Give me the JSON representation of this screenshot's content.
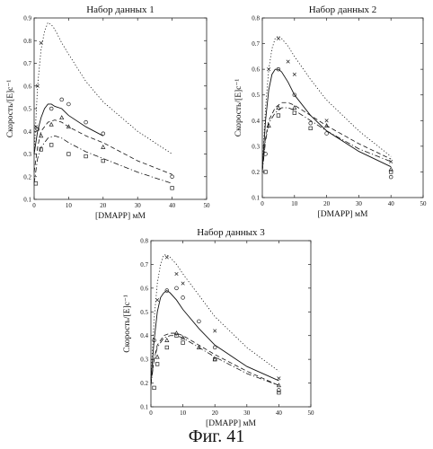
{
  "figure_caption": "Фиг. 41",
  "chart_data": [
    {
      "type": "line+scatter",
      "title": "Набор данных 1",
      "xlabel": "[DMAPP] мМ",
      "ylabel": "Скорость/[E]c⁻¹",
      "xlim": [
        0,
        50
      ],
      "ylim": [
        0.1,
        0.9
      ],
      "xticks": [
        "0",
        "10",
        "20",
        "30",
        "40",
        "50"
      ],
      "yticks": [
        "0.1",
        "0.2",
        "0.3",
        "0.4",
        "0.5",
        "0.6",
        "0.7",
        "0.8",
        "0.9"
      ],
      "grid": false,
      "series": [
        {
          "style": "dotted",
          "marker": "x",
          "x": [
            0,
            1,
            2,
            3,
            4,
            5,
            6,
            8,
            10,
            15,
            20,
            30,
            40
          ],
          "y": [
            0.3,
            0.6,
            0.76,
            0.84,
            0.88,
            0.87,
            0.85,
            0.79,
            0.74,
            0.62,
            0.53,
            0.4,
            0.3
          ],
          "points": [
            [
              0.5,
              0.42
            ],
            [
              1,
              0.6
            ],
            [
              2,
              0.79
            ]
          ]
        },
        {
          "style": "solid",
          "marker": "o",
          "x": [
            0,
            1,
            2,
            3,
            4,
            5,
            6,
            8,
            10,
            15,
            20
          ],
          "y": [
            0.3,
            0.4,
            0.46,
            0.5,
            0.52,
            0.52,
            0.51,
            0.5,
            0.47,
            0.42,
            0.38
          ],
          "points": [
            [
              1,
              0.41
            ],
            [
              5,
              0.5
            ],
            [
              8,
              0.54
            ],
            [
              10,
              0.52
            ],
            [
              15,
              0.44
            ],
            [
              20,
              0.39
            ],
            [
              40,
              0.2
            ]
          ]
        },
        {
          "style": "dashed",
          "marker": "triangle",
          "x": [
            0,
            1,
            2,
            4,
            6,
            8,
            10,
            15,
            20,
            30,
            40
          ],
          "y": [
            0.22,
            0.33,
            0.4,
            0.44,
            0.45,
            0.44,
            0.42,
            0.38,
            0.35,
            0.27,
            0.21
          ],
          "points": [
            [
              2,
              0.38
            ],
            [
              5,
              0.43
            ],
            [
              8,
              0.46
            ],
            [
              10,
              0.42
            ],
            [
              20,
              0.33
            ]
          ]
        },
        {
          "style": "dashdot",
          "marker": "square",
          "x": [
            0,
            1,
            2,
            4,
            6,
            8,
            10,
            15,
            20,
            30,
            40
          ],
          "y": [
            0.17,
            0.28,
            0.33,
            0.37,
            0.38,
            0.37,
            0.35,
            0.31,
            0.28,
            0.22,
            0.17
          ],
          "points": [
            [
              0.5,
              0.17
            ],
            [
              2,
              0.32
            ],
            [
              5,
              0.34
            ],
            [
              10,
              0.3
            ],
            [
              15,
              0.29
            ],
            [
              20,
              0.27
            ],
            [
              40,
              0.15
            ]
          ]
        }
      ]
    },
    {
      "type": "line+scatter",
      "title": "Набор данных 2",
      "xlabel": "[DMAPP] мМ",
      "ylabel": "Скорость/[E]c⁻¹",
      "xlim": [
        0,
        50
      ],
      "ylim": [
        0.1,
        0.8
      ],
      "xticks": [
        "0",
        "10",
        "20",
        "30",
        "40",
        "50"
      ],
      "yticks": [
        "0.1",
        "0.2",
        "0.3",
        "0.4",
        "0.5",
        "0.6",
        "0.7",
        "0.8"
      ],
      "grid": false,
      "series": [
        {
          "style": "dotted",
          "marker": "x",
          "x": [
            0,
            1,
            2,
            3,
            4,
            5,
            6,
            8,
            10,
            15,
            20,
            30,
            40
          ],
          "y": [
            0.22,
            0.45,
            0.6,
            0.68,
            0.72,
            0.73,
            0.72,
            0.69,
            0.65,
            0.56,
            0.48,
            0.36,
            0.26
          ],
          "points": [
            [
              2,
              0.6
            ],
            [
              5,
              0.72
            ],
            [
              8,
              0.63
            ],
            [
              10,
              0.58
            ],
            [
              20,
              0.4
            ],
            [
              40,
              0.24
            ]
          ]
        },
        {
          "style": "solid",
          "marker": "o",
          "x": [
            0,
            1,
            2,
            3,
            4,
            5,
            6,
            8,
            10,
            15,
            20,
            30,
            40
          ],
          "y": [
            0.21,
            0.4,
            0.52,
            0.58,
            0.6,
            0.6,
            0.59,
            0.55,
            0.5,
            0.42,
            0.36,
            0.28,
            0.22
          ],
          "points": [
            [
              1,
              0.27
            ],
            [
              5,
              0.6
            ],
            [
              10,
              0.5
            ],
            [
              15,
              0.39
            ],
            [
              20,
              0.35
            ],
            [
              40,
              0.18
            ]
          ]
        },
        {
          "style": "dashed",
          "marker": "triangle",
          "x": [
            0,
            1,
            2,
            4,
            6,
            8,
            10,
            15,
            20,
            30,
            40
          ],
          "y": [
            0.21,
            0.33,
            0.4,
            0.45,
            0.47,
            0.47,
            0.46,
            0.42,
            0.38,
            0.31,
            0.25
          ],
          "points": [
            [
              2,
              0.38
            ],
            [
              5,
              0.45
            ],
            [
              10,
              0.45
            ],
            [
              20,
              0.38
            ],
            [
              40,
              0.21
            ]
          ]
        },
        {
          "style": "dashdot",
          "marker": "square",
          "x": [
            0,
            1,
            2,
            4,
            6,
            8,
            10,
            15,
            20,
            30,
            40
          ],
          "y": [
            0.2,
            0.32,
            0.39,
            0.43,
            0.45,
            0.45,
            0.44,
            0.4,
            0.36,
            0.29,
            0.24
          ],
          "points": [
            [
              1,
              0.2
            ],
            [
              5,
              0.42
            ],
            [
              10,
              0.43
            ],
            [
              15,
              0.37
            ],
            [
              40,
              0.2
            ]
          ]
        }
      ]
    },
    {
      "type": "line+scatter",
      "title": "Набор данных 3",
      "xlabel": "[DMAPP] мМ",
      "ylabel": "Скорость/[E]c⁻¹",
      "xlim": [
        0,
        50
      ],
      "ylim": [
        0.1,
        0.8
      ],
      "xticks": [
        "0",
        "10",
        "20",
        "30",
        "40",
        "50"
      ],
      "yticks": [
        "0.1",
        "0.2",
        "0.3",
        "0.4",
        "0.5",
        "0.6",
        "0.7",
        "0.8"
      ],
      "grid": false,
      "series": [
        {
          "style": "dotted",
          "marker": "x",
          "x": [
            0,
            1,
            2,
            3,
            4,
            5,
            6,
            8,
            10,
            15,
            20,
            30,
            40
          ],
          "y": [
            0.22,
            0.47,
            0.62,
            0.7,
            0.74,
            0.74,
            0.73,
            0.7,
            0.66,
            0.57,
            0.48,
            0.35,
            0.25
          ],
          "points": [
            [
              2,
              0.55
            ],
            [
              5,
              0.73
            ],
            [
              8,
              0.66
            ],
            [
              10,
              0.62
            ],
            [
              20,
              0.42
            ],
            [
              40,
              0.22
            ]
          ]
        },
        {
          "style": "solid",
          "marker": "o",
          "x": [
            0,
            1,
            2,
            3,
            4,
            5,
            6,
            8,
            10,
            15,
            20,
            30,
            40
          ],
          "y": [
            0.21,
            0.38,
            0.5,
            0.56,
            0.58,
            0.59,
            0.58,
            0.55,
            0.51,
            0.43,
            0.36,
            0.27,
            0.21
          ],
          "points": [
            [
              1,
              0.38
            ],
            [
              5,
              0.59
            ],
            [
              8,
              0.6
            ],
            [
              10,
              0.56
            ],
            [
              15,
              0.46
            ],
            [
              20,
              0.35
            ],
            [
              40,
              0.17
            ]
          ]
        },
        {
          "style": "dashed",
          "marker": "triangle",
          "x": [
            0,
            1,
            2,
            4,
            6,
            8,
            10,
            15,
            20,
            30,
            40
          ],
          "y": [
            0.2,
            0.3,
            0.36,
            0.4,
            0.41,
            0.41,
            0.4,
            0.36,
            0.32,
            0.25,
            0.19
          ],
          "points": [
            [
              2,
              0.31
            ],
            [
              5,
              0.38
            ],
            [
              8,
              0.41
            ],
            [
              10,
              0.39
            ],
            [
              15,
              0.35
            ],
            [
              20,
              0.3
            ],
            [
              40,
              0.19
            ]
          ]
        },
        {
          "style": "dashdot",
          "marker": "square",
          "x": [
            0,
            1,
            2,
            4,
            6,
            8,
            10,
            15,
            20,
            30,
            40
          ],
          "y": [
            0.19,
            0.3,
            0.35,
            0.39,
            0.4,
            0.4,
            0.39,
            0.35,
            0.31,
            0.24,
            0.19
          ],
          "points": [
            [
              1,
              0.18
            ],
            [
              2,
              0.28
            ],
            [
              5,
              0.35
            ],
            [
              8,
              0.4
            ],
            [
              10,
              0.37
            ],
            [
              20,
              0.3
            ],
            [
              40,
              0.16
            ]
          ]
        }
      ]
    }
  ]
}
